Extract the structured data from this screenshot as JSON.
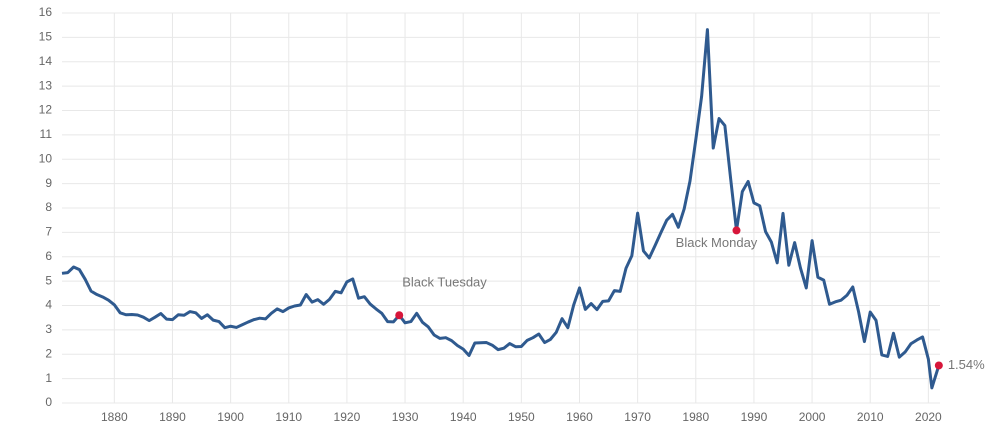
{
  "chart_data": {
    "type": "line",
    "x": [
      1871,
      1872,
      1873,
      1874,
      1875,
      1876,
      1877,
      1878,
      1879,
      1880,
      1881,
      1882,
      1883,
      1884,
      1885,
      1886,
      1887,
      1888,
      1889,
      1890,
      1891,
      1892,
      1893,
      1894,
      1895,
      1896,
      1897,
      1898,
      1899,
      1900,
      1901,
      1902,
      1903,
      1904,
      1905,
      1906,
      1907,
      1908,
      1909,
      1910,
      1911,
      1912,
      1913,
      1914,
      1915,
      1916,
      1917,
      1918,
      1919,
      1920,
      1921,
      1922,
      1923,
      1924,
      1925,
      1926,
      1927,
      1928,
      1929,
      1930,
      1931,
      1932,
      1933,
      1934,
      1935,
      1936,
      1937,
      1938,
      1939,
      1940,
      1941,
      1942,
      1943,
      1944,
      1945,
      1946,
      1947,
      1948,
      1949,
      1950,
      1951,
      1952,
      1953,
      1954,
      1955,
      1956,
      1957,
      1958,
      1959,
      1960,
      1961,
      1962,
      1963,
      1964,
      1965,
      1966,
      1967,
      1968,
      1969,
      1970,
      1971,
      1972,
      1973,
      1974,
      1975,
      1976,
      1977,
      1978,
      1979,
      1980,
      1981,
      1982,
      1983,
      1984,
      1985,
      1986,
      1987,
      1988,
      1989,
      1990,
      1991,
      1992,
      1993,
      1994,
      1995,
      1996,
      1997,
      1998,
      1999,
      2000,
      2001,
      2002,
      2003,
      2004,
      2005,
      2006,
      2007,
      2008,
      2009,
      2010,
      2011,
      2012,
      2013,
      2014,
      2015,
      2016,
      2017,
      2018,
      2019,
      2020,
      2020.6,
      2021.8
    ],
    "series": [
      {
        "color": "#2f5a8f",
        "values": [
          5.32,
          5.35,
          5.58,
          5.47,
          5.07,
          4.59,
          4.45,
          4.35,
          4.22,
          4.03,
          3.7,
          3.62,
          3.63,
          3.61,
          3.52,
          3.38,
          3.52,
          3.67,
          3.44,
          3.42,
          3.62,
          3.6,
          3.75,
          3.7,
          3.47,
          3.62,
          3.4,
          3.34,
          3.09,
          3.15,
          3.1,
          3.21,
          3.32,
          3.42,
          3.48,
          3.45,
          3.68,
          3.86,
          3.75,
          3.9,
          3.98,
          4.02,
          4.45,
          4.14,
          4.24,
          4.05,
          4.25,
          4.58,
          4.52,
          4.97,
          5.09,
          4.3,
          4.36,
          4.06,
          3.86,
          3.68,
          3.34,
          3.33,
          3.6,
          3.29,
          3.34,
          3.68,
          3.31,
          3.12,
          2.79,
          2.65,
          2.68,
          2.56,
          2.36,
          2.21,
          1.95,
          2.46,
          2.47,
          2.48,
          2.37,
          2.19,
          2.25,
          2.44,
          2.31,
          2.32,
          2.57,
          2.68,
          2.83,
          2.48,
          2.61,
          2.9,
          3.46,
          3.09,
          4.02,
          4.72,
          3.84,
          4.08,
          3.83,
          4.17,
          4.19,
          4.61,
          4.58,
          5.53,
          6.04,
          7.79,
          6.24,
          5.95,
          6.46,
          6.99,
          7.5,
          7.74,
          7.21,
          7.96,
          9.1,
          10.8,
          12.57,
          15.32,
          10.46,
          11.67,
          11.38,
          9.19,
          7.08,
          8.67,
          9.09,
          8.21,
          8.09,
          7.03,
          6.6,
          5.75,
          7.78,
          5.65,
          6.58,
          5.54,
          4.72,
          6.66,
          5.16,
          5.04,
          4.05,
          4.15,
          4.22,
          4.42,
          4.76,
          3.74,
          2.52,
          3.73,
          3.39,
          1.97,
          1.91,
          2.86,
          1.88,
          2.09,
          2.43,
          2.58,
          2.71,
          1.8,
          0.62,
          1.54
        ]
      }
    ],
    "annotations": [
      {
        "text": "Black Tuesday",
        "x": 1929,
        "y": 3.6
      },
      {
        "text": "Black Monday",
        "x": 1987,
        "y": 7.08
      },
      {
        "text": "1.54%",
        "x": 2021.8,
        "y": 1.54
      }
    ],
    "marker_color": "#d7163a",
    "xlim": [
      1871,
      2022
    ],
    "ylim": [
      0,
      16
    ],
    "xticks": [
      1880,
      1890,
      1900,
      1910,
      1920,
      1930,
      1940,
      1950,
      1960,
      1970,
      1980,
      1990,
      2000,
      2010,
      2020
    ],
    "yticks": [
      0,
      1,
      2,
      3,
      4,
      5,
      6,
      7,
      8,
      9,
      10,
      11,
      12,
      13,
      14,
      15,
      16
    ],
    "grid": true
  }
}
